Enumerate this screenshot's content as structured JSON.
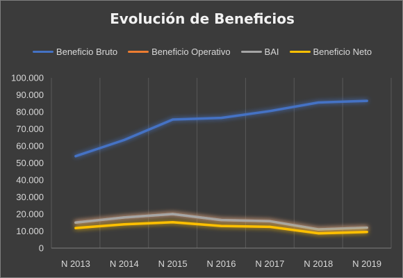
{
  "chart_data": {
    "type": "line",
    "title": "Evolución de Beneficios",
    "xlabel": "",
    "ylabel": "",
    "categories": [
      "N 2013",
      "N 2014",
      "N 2015",
      "N 2016",
      "N 2017",
      "N 2018",
      "N 2019"
    ],
    "ylim": [
      0,
      100000
    ],
    "yticks": [
      0,
      10000,
      20000,
      30000,
      40000,
      50000,
      60000,
      70000,
      80000,
      90000,
      100000
    ],
    "ytick_labels": [
      "0",
      "10.000",
      "20.000",
      "30.000",
      "40.000",
      "50.000",
      "60.000",
      "70.000",
      "80.000",
      "90.000",
      "100.000"
    ],
    "grid": "vertical",
    "legend_position": "top",
    "series": [
      {
        "name": "Beneficio Bruto",
        "color": "#4472c4",
        "values": [
          54000,
          63500,
          75500,
          76500,
          80500,
          85500,
          86500
        ]
      },
      {
        "name": "Beneficio Operativo",
        "color": "#ed7d31",
        "values": [
          15000,
          18000,
          20000,
          16500,
          15800,
          11000,
          12000
        ]
      },
      {
        "name": "BAI",
        "color": "#a5a5a5",
        "values": [
          15000,
          18000,
          20000,
          16500,
          15800,
          11000,
          12000
        ]
      },
      {
        "name": "Beneficio Neto",
        "color": "#ffc000",
        "values": [
          11800,
          14000,
          15200,
          13000,
          12500,
          8700,
          9500
        ]
      }
    ]
  }
}
